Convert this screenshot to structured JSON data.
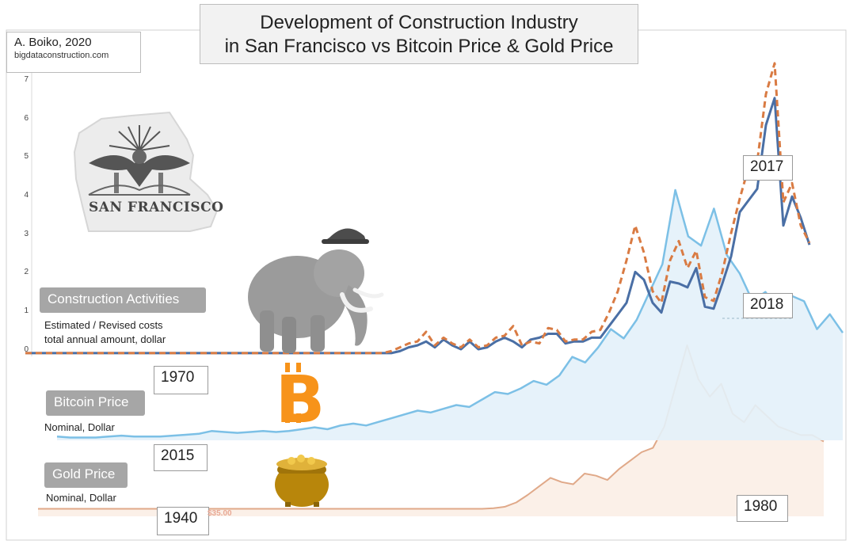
{
  "header": {
    "title_line1": "Development of Construction Industry",
    "title_line2": "in San Francisco vs Bitcoin Price & Gold Price"
  },
  "author": {
    "name": "A. Boiko, 2020",
    "url": "bigdataconstruction.com"
  },
  "logo": {
    "text": "SAN FRANCISCO",
    "icon": "san-francisco-eagle-bridge-logo"
  },
  "labels": {
    "construction": "Construction Activities",
    "construction_sub1": "Estimated / Revised costs",
    "construction_sub2": "total annual amount, dollar",
    "bitcoin": "Bitcoin Price",
    "bitcoin_sub": "Nominal, Dollar",
    "gold": "Gold Price",
    "gold_sub": "Nominal, Dollar"
  },
  "year_markers": {
    "y1970": "1970",
    "y2017": "2017",
    "y2018": "2018",
    "y2015": "2015",
    "y1940": "1940",
    "y1980": "1980"
  },
  "faint_text": "$35.00",
  "icons": {
    "mammoth": "mammoth-with-hard-hat-icon",
    "bitcoin": "bitcoin-logo-icon",
    "gold": "pot-of-gold-icon"
  },
  "colors": {
    "construction_estimated": "#4a6fa5",
    "construction_revised": "#d97b43",
    "bitcoin": "#7cc0e6",
    "bitcoin_fill": "#e3f1fa",
    "gold": "#e0a989",
    "bitcoin_logo": "#f7931a",
    "gold_pot": "#b8860b"
  },
  "chart_data": [
    {
      "type": "line",
      "xlabel": "",
      "ylabel": "",
      "yticks": [
        "7",
        "6",
        "5",
        "4",
        "3",
        "2",
        "1",
        "0"
      ],
      "ylim": [
        0,
        7.5
      ],
      "grid": false,
      "x_start_label": "1970",
      "series": [
        {
          "name": "Estimated / Revised costs",
          "style": "solid",
          "values": [
            -0.1,
            -0.1,
            -0.1,
            -0.1,
            -0.1,
            -0.1,
            -0.1,
            -0.1,
            -0.1,
            -0.1,
            -0.1,
            -0.1,
            -0.1,
            -0.1,
            -0.1,
            -0.1,
            -0.1,
            -0.1,
            -0.1,
            -0.1,
            -0.1,
            -0.1,
            -0.1,
            -0.1,
            -0.1,
            -0.1,
            -0.1,
            -0.1,
            -0.1,
            -0.1,
            -0.1,
            -0.1,
            -0.1,
            -0.1,
            -0.1,
            -0.1,
            -0.1,
            -0.1,
            -0.1,
            -0.1,
            -0.1,
            -0.1,
            -0.1,
            -0.05,
            0.05,
            0.1,
            0.2,
            0.05,
            0.25,
            0.1,
            0.0,
            0.2,
            0.0,
            0.05,
            0.2,
            0.3,
            0.2,
            0.05,
            0.25,
            0.3,
            0.4,
            0.4,
            0.15,
            0.2,
            0.2,
            0.3,
            0.3,
            0.6,
            0.9,
            1.2,
            2.0,
            1.8,
            1.2,
            0.95,
            1.75,
            1.7,
            1.6,
            2.1,
            1.1,
            1.05,
            1.7,
            2.4,
            3.55,
            3.85,
            4.15,
            5.8,
            6.5,
            3.2,
            3.95,
            3.4,
            2.7
          ]
        },
        {
          "name": "Revised costs",
          "style": "dashed",
          "values": [
            -0.1,
            -0.1,
            -0.1,
            -0.1,
            -0.1,
            -0.1,
            -0.1,
            -0.1,
            -0.1,
            -0.1,
            -0.1,
            -0.1,
            -0.1,
            -0.1,
            -0.1,
            -0.1,
            -0.1,
            -0.1,
            -0.1,
            -0.1,
            -0.1,
            -0.1,
            -0.1,
            -0.1,
            -0.1,
            -0.1,
            -0.1,
            -0.1,
            -0.1,
            -0.1,
            -0.1,
            -0.1,
            -0.1,
            -0.1,
            -0.1,
            -0.1,
            -0.1,
            -0.1,
            -0.1,
            -0.1,
            -0.1,
            -0.1,
            -0.05,
            0.05,
            0.15,
            0.2,
            0.45,
            0.1,
            0.3,
            0.15,
            0.05,
            0.25,
            0.05,
            0.1,
            0.3,
            0.35,
            0.6,
            0.1,
            0.2,
            0.15,
            0.55,
            0.5,
            0.2,
            0.25,
            0.25,
            0.45,
            0.5,
            0.95,
            1.5,
            2.3,
            3.2,
            2.5,
            1.5,
            1.2,
            2.3,
            2.8,
            2.1,
            2.55,
            1.35,
            1.25,
            2.0,
            3.0,
            3.9,
            4.7,
            4.85,
            6.6,
            7.4,
            3.8,
            4.3,
            3.2,
            2.75
          ]
        }
      ]
    },
    {
      "type": "area",
      "title": "Bitcoin Price",
      "ylabel": "Nominal, Dollar",
      "x_start_label": "2015",
      "series": [
        {
          "name": "Bitcoin Price",
          "values": [
            0.2,
            0.15,
            0.15,
            0.15,
            0.2,
            0.25,
            0.2,
            0.2,
            0.2,
            0.25,
            0.3,
            0.35,
            0.5,
            0.45,
            0.4,
            0.45,
            0.5,
            0.45,
            0.5,
            0.6,
            0.7,
            0.6,
            0.8,
            0.9,
            0.8,
            1.0,
            1.2,
            1.4,
            1.6,
            1.5,
            1.7,
            1.9,
            1.8,
            2.2,
            2.6,
            2.5,
            2.8,
            3.2,
            3.0,
            3.5,
            4.5,
            4.2,
            5.0,
            6.0,
            5.5,
            6.5,
            8.0,
            9.5,
            13.5,
            11.0,
            10.5,
            12.5,
            10.0,
            9.0,
            7.5,
            8.0,
            7.0,
            7.8,
            7.5,
            6.0,
            6.8,
            5.8
          ]
        }
      ]
    },
    {
      "type": "area",
      "title": "Gold Price",
      "ylabel": "Nominal, Dollar",
      "x_start_label": "1940",
      "annotation": "$35.00",
      "series": [
        {
          "name": "Gold Price",
          "values": [
            35,
            35,
            35,
            35,
            35,
            35,
            35,
            35,
            35,
            35,
            35,
            35,
            35,
            35,
            35,
            35,
            35,
            35,
            35,
            35,
            35,
            35,
            35,
            35,
            35,
            35,
            35,
            35,
            35,
            35,
            35,
            35,
            35,
            35,
            35,
            35,
            35,
            35,
            35,
            35,
            38,
            45,
            65,
            100,
            140,
            180,
            160,
            150,
            200,
            190,
            170,
            220,
            260,
            300,
            320,
            420,
            610,
            800,
            640,
            560,
            620,
            480,
            440,
            520,
            470,
            420,
            400,
            380,
            380,
            350
          ]
        }
      ]
    }
  ]
}
